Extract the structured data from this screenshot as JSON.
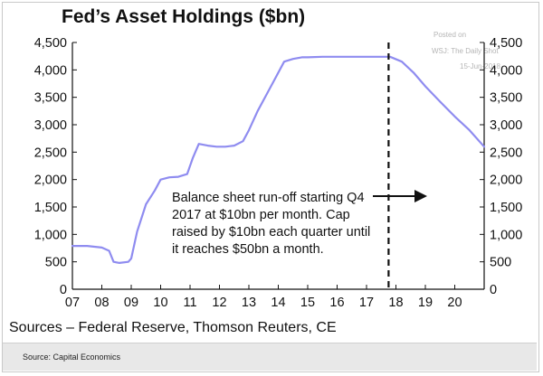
{
  "chart_data": {
    "type": "line",
    "title": "Fed’s Asset Holdings ($bn)",
    "xlabel": "",
    "ylabel": "",
    "x_range": [
      2007,
      2021
    ],
    "ylim": [
      0,
      4500
    ],
    "x_ticks": [
      "07",
      "08",
      "09",
      "10",
      "11",
      "12",
      "13",
      "14",
      "15",
      "16",
      "17",
      "18",
      "19",
      "20"
    ],
    "y_ticks": [
      "0",
      "500",
      "1,000",
      "1,500",
      "2,000",
      "2,500",
      "3,000",
      "3,500",
      "4,000",
      "4,500"
    ],
    "grid": false,
    "line_color": "#8f8cf0",
    "series": [
      {
        "x": [
          2007.0,
          2007.5,
          2008.0,
          2008.25,
          2008.4,
          2008.6,
          2008.9,
          2009.0,
          2009.2,
          2009.5,
          2009.8,
          2010.0,
          2010.3,
          2010.6,
          2010.9,
          2011.1,
          2011.3,
          2011.6,
          2011.9,
          2012.2,
          2012.5,
          2012.8,
          2013.0,
          2013.3,
          2013.6,
          2013.9,
          2014.2,
          2014.5,
          2014.8,
          2015.0,
          2015.5,
          2016.0,
          2016.5,
          2017.0,
          2017.5,
          2017.8,
          2018.2,
          2018.6,
          2019.0,
          2019.5,
          2020.0,
          2020.5,
          2021.0
        ],
        "y": [
          790,
          790,
          760,
          700,
          500,
          480,
          500,
          560,
          1050,
          1550,
          1800,
          2000,
          2040,
          2050,
          2100,
          2400,
          2650,
          2620,
          2600,
          2600,
          2620,
          2700,
          2900,
          3250,
          3550,
          3850,
          4150,
          4200,
          4230,
          4230,
          4240,
          4240,
          4240,
          4240,
          4240,
          4240,
          4150,
          3950,
          3700,
          3420,
          3150,
          2900,
          2600
        ]
      }
    ],
    "vline_x": 2017.75,
    "annotation": "Balance sheet run-off starting Q4 2017 at $10bn per month. Cap raised by $10bn each quarter until it reaches $50bn a month.",
    "sources": "Sources – Federal Reserve, Thomson Reuters, CE"
  },
  "watermark": {
    "line1": "Posted on",
    "line2": "WSJ: The Daily Shot",
    "line3": "15-Jun-2018"
  },
  "footer": {
    "source": "Source: Capital Economics"
  }
}
